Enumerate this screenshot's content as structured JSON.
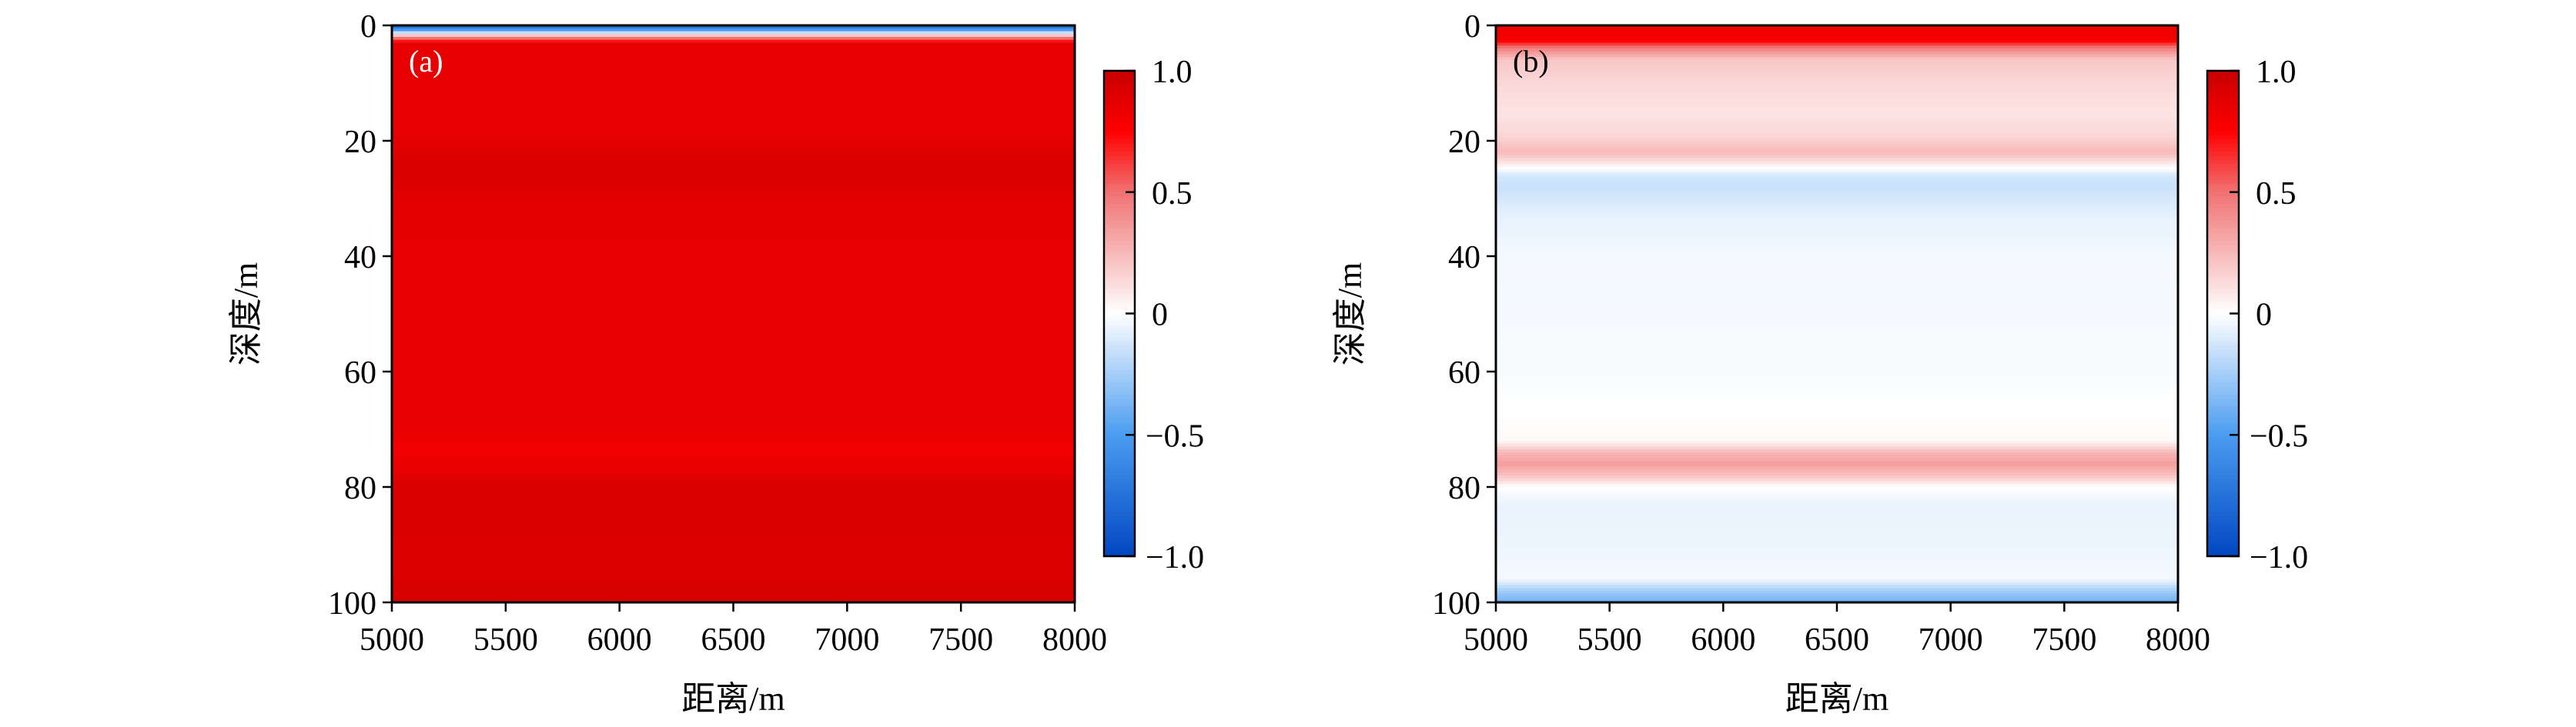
{
  "colormap": {
    "stops": [
      [
        -1,
        "#0047c2"
      ],
      [
        -0.5,
        "#4a9cf0"
      ],
      [
        0,
        "#ffffff"
      ],
      [
        0.5,
        "#f07272"
      ],
      [
        0.75,
        "#ff0000"
      ],
      [
        1,
        "#c80000"
      ]
    ]
  },
  "chart_data": [
    {
      "type": "heatmap",
      "panel_label": "(a)",
      "panel_label_color": "#ffffff",
      "xlabel": "距离/m",
      "ylabel": "深度/m",
      "xlim": [
        5000,
        8000
      ],
      "ylim": [
        100,
        0
      ],
      "xticks": [
        "5000",
        "5500",
        "6000",
        "6500",
        "7000",
        "7500",
        "8000"
      ],
      "yticks": [
        "0",
        "20",
        "40",
        "60",
        "80",
        "100"
      ],
      "colorbar": {
        "range": [
          -1,
          1
        ],
        "ticks": [
          "1.0",
          "0.5",
          "0",
          "−0.5",
          "−1.0"
        ]
      },
      "depth_profile": {
        "depth": [
          0,
          0.8,
          1.6,
          2.4,
          3.2,
          5,
          15,
          20,
          25,
          30,
          40,
          60,
          70,
          74,
          77,
          80,
          90,
          95,
          98,
          100
        ],
        "value": [
          -0.85,
          -0.5,
          0.1,
          0.6,
          0.85,
          0.86,
          0.85,
          0.87,
          0.93,
          0.88,
          0.86,
          0.86,
          0.85,
          0.8,
          0.86,
          0.92,
          0.91,
          0.9,
          0.94,
          0.94
        ]
      }
    },
    {
      "type": "heatmap",
      "panel_label": "(b)",
      "panel_label_color": "#000000",
      "xlabel": "距离/m",
      "ylabel": "深度/m",
      "xlim": [
        5000,
        8000
      ],
      "ylim": [
        100,
        0
      ],
      "xticks": [
        "5000",
        "5500",
        "6000",
        "6500",
        "7000",
        "7500",
        "8000"
      ],
      "yticks": [
        "0",
        "20",
        "40",
        "60",
        "80",
        "100"
      ],
      "colorbar": {
        "range": [
          -1,
          1
        ],
        "ticks": [
          "1.0",
          "0.5",
          "0",
          "−0.5",
          "−1.0"
        ]
      },
      "depth_profile": {
        "depth": [
          0,
          2.5,
          4,
          6,
          10,
          15,
          19,
          22,
          24.5,
          26,
          28,
          33,
          40,
          60,
          72,
          74,
          76,
          78,
          80,
          83,
          90,
          96,
          98,
          100
        ],
        "value": [
          0.82,
          0.8,
          0.45,
          0.2,
          0.14,
          0.1,
          0.14,
          0.25,
          0.03,
          -0.12,
          -0.15,
          -0.07,
          -0.03,
          -0.02,
          0.02,
          0.25,
          0.35,
          0.22,
          0.0,
          -0.06,
          -0.05,
          -0.03,
          -0.25,
          -0.4
        ]
      }
    }
  ]
}
